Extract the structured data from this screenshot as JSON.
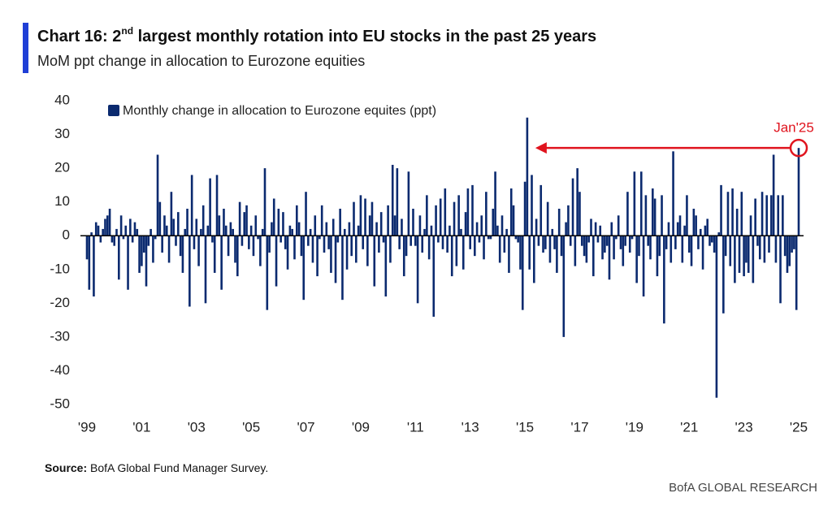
{
  "chart_data": {
    "type": "bar",
    "title_parts": [
      "Chart 16: 2",
      "nd",
      " largest monthly rotation into EU stocks in the past 25 years"
    ],
    "subtitle": "MoM ppt change in allocation to Eurozone equities",
    "legend_label": "Monthly change in allocation to Eurozone equites (ppt)",
    "annotation": "Jan'25",
    "source_label": "Source:",
    "source_text": "BofA Global Fund Manager Survey.",
    "brand": "BofA GLOBAL RESEARCH",
    "color": "#0b2a6f",
    "annotation_color": "#e0141e",
    "ylim": [
      -50,
      40
    ],
    "yticks": [
      -50,
      -40,
      -30,
      -20,
      -10,
      0,
      10,
      20,
      30,
      40
    ],
    "categories": [
      "'99",
      null,
      null,
      null,
      null,
      null,
      null,
      null,
      null,
      null,
      null,
      null,
      null,
      null,
      null,
      null,
      null,
      null,
      null,
      null,
      null,
      null,
      null,
      null,
      "'01",
      null,
      null,
      null,
      null,
      null,
      null,
      null,
      null,
      null,
      null,
      null,
      null,
      null,
      null,
      null,
      null,
      null,
      null,
      null,
      null,
      null,
      null,
      null,
      "'03",
      null,
      null,
      null,
      null,
      null,
      null,
      null,
      null,
      null,
      null,
      null,
      null,
      null,
      null,
      null,
      null,
      null,
      null,
      null,
      null,
      null,
      null,
      null,
      "'05",
      null,
      null,
      null,
      null,
      null,
      null,
      null,
      null,
      null,
      null,
      null,
      null,
      null,
      null,
      null,
      null,
      null,
      null,
      null,
      null,
      null,
      null,
      null,
      "'07",
      null,
      null,
      null,
      null,
      null,
      null,
      null,
      null,
      null,
      null,
      null,
      null,
      null,
      null,
      null,
      null,
      null,
      null,
      null,
      null,
      null,
      null,
      null,
      "'09",
      null,
      null,
      null,
      null,
      null,
      null,
      null,
      null,
      null,
      null,
      null,
      null,
      null,
      null,
      null,
      null,
      null,
      null,
      null,
      null,
      null,
      null,
      null,
      "'11",
      null,
      null,
      null,
      null,
      null,
      null,
      null,
      null,
      null,
      null,
      null,
      null,
      null,
      null,
      null,
      null,
      null,
      null,
      null,
      null,
      null,
      null,
      null,
      "'13",
      null,
      null,
      null,
      null,
      null,
      null,
      null,
      null,
      null,
      null,
      null,
      null,
      null,
      null,
      null,
      null,
      null,
      null,
      null,
      null,
      null,
      null,
      null,
      "'15",
      null,
      null,
      null,
      null,
      null,
      null,
      null,
      null,
      null,
      null,
      null,
      null,
      null,
      null,
      null,
      null,
      null,
      null,
      null,
      null,
      null,
      null,
      null,
      "'17",
      null,
      null,
      null,
      null,
      null,
      null,
      null,
      null,
      null,
      null,
      null,
      null,
      null,
      null,
      null,
      null,
      null,
      null,
      null,
      null,
      null,
      null,
      null,
      "'19",
      null,
      null,
      null,
      null,
      null,
      null,
      null,
      null,
      null,
      null,
      null,
      null,
      null,
      null,
      null,
      null,
      null,
      null,
      null,
      null,
      null,
      null,
      null,
      "'21",
      null,
      null,
      null,
      null,
      null,
      null,
      null,
      null,
      null,
      null,
      null,
      null,
      null,
      null,
      null,
      null,
      null,
      null,
      null,
      null,
      null,
      null,
      null,
      "'23",
      null,
      null,
      null,
      null,
      null,
      null,
      null,
      null,
      null,
      null,
      null,
      null,
      null,
      null,
      null,
      null,
      null,
      null,
      null,
      null,
      null,
      null,
      null,
      "'25"
    ],
    "values": [
      -7,
      -16,
      1,
      -18,
      4,
      3,
      -2,
      2,
      5,
      6,
      8,
      -2,
      -3,
      2,
      -13,
      6,
      -1,
      3,
      -16,
      5,
      -2,
      4,
      2,
      -11,
      -9,
      -5,
      -15,
      -3,
      2,
      -8,
      -1,
      24,
      10,
      -5,
      6,
      3,
      -8,
      13,
      5,
      -3,
      7,
      -6,
      -11,
      2,
      8,
      -21,
      18,
      -4,
      5,
      -9,
      2,
      9,
      -20,
      3,
      17,
      -2,
      -11,
      18,
      6,
      -16,
      8,
      3,
      -6,
      4,
      2,
      -8,
      -12,
      10,
      -3,
      7,
      9,
      -4,
      3,
      -6,
      6,
      -1,
      -9,
      2,
      20,
      -22,
      -5,
      4,
      11,
      -15,
      8,
      -2,
      7,
      -4,
      -10,
      3,
      2,
      -7,
      9,
      4,
      -6,
      -19,
      13,
      -3,
      2,
      -8,
      6,
      -12,
      -1,
      9,
      -5,
      4,
      -4,
      -11,
      5,
      -14,
      -2,
      8,
      -19,
      2,
      -10,
      4,
      -6,
      10,
      -8,
      3,
      12,
      -4,
      11,
      -9,
      6,
      10,
      -15,
      4,
      -5,
      7,
      -2,
      -18,
      9,
      -8,
      21,
      6,
      20,
      -4,
      5,
      -12,
      -6,
      19,
      -3,
      8,
      -3,
      -20,
      6,
      -5,
      2,
      12,
      -7,
      3,
      -24,
      9,
      -2,
      11,
      -4,
      14,
      -5,
      3,
      -12,
      10,
      -9,
      12,
      2,
      -10,
      7,
      14,
      -4,
      15,
      -6,
      4,
      -2,
      6,
      -7,
      13,
      -1,
      -1,
      8,
      19,
      3,
      -8,
      6,
      -5,
      2,
      -11,
      14,
      9,
      -1,
      -2,
      -10,
      -22,
      16,
      35,
      -10,
      18,
      -14,
      5,
      -3,
      15,
      -5,
      -4,
      10,
      -8,
      2,
      -4,
      -11,
      8,
      -6,
      -30,
      4,
      9,
      -3,
      17,
      -9,
      20,
      13,
      -3,
      -6,
      -8,
      -2,
      5,
      -12,
      4,
      -2,
      3,
      -7,
      -5,
      -3,
      -13,
      4,
      -7,
      -1,
      6,
      -4,
      -9,
      -3,
      13,
      -5,
      -1,
      19,
      -14,
      -6,
      19,
      -18,
      12,
      -3,
      -7,
      14,
      11,
      -12,
      -6,
      12,
      -26,
      -4,
      4,
      -8,
      25,
      -4,
      4,
      6,
      -8,
      3,
      12,
      -5,
      -9,
      8,
      6,
      -4,
      2,
      -10,
      3,
      5,
      -3,
      -2,
      -5,
      -48,
      1,
      15,
      -23,
      -6,
      13,
      -9,
      14,
      -14,
      8,
      -11,
      13,
      -12,
      -8,
      -11,
      6,
      -14,
      11,
      -3,
      -7,
      13,
      -8,
      12,
      -5,
      12,
      24,
      -8,
      12,
      -20,
      12,
      -6,
      -11,
      -9,
      -5,
      -4,
      -22,
      26
    ]
  }
}
